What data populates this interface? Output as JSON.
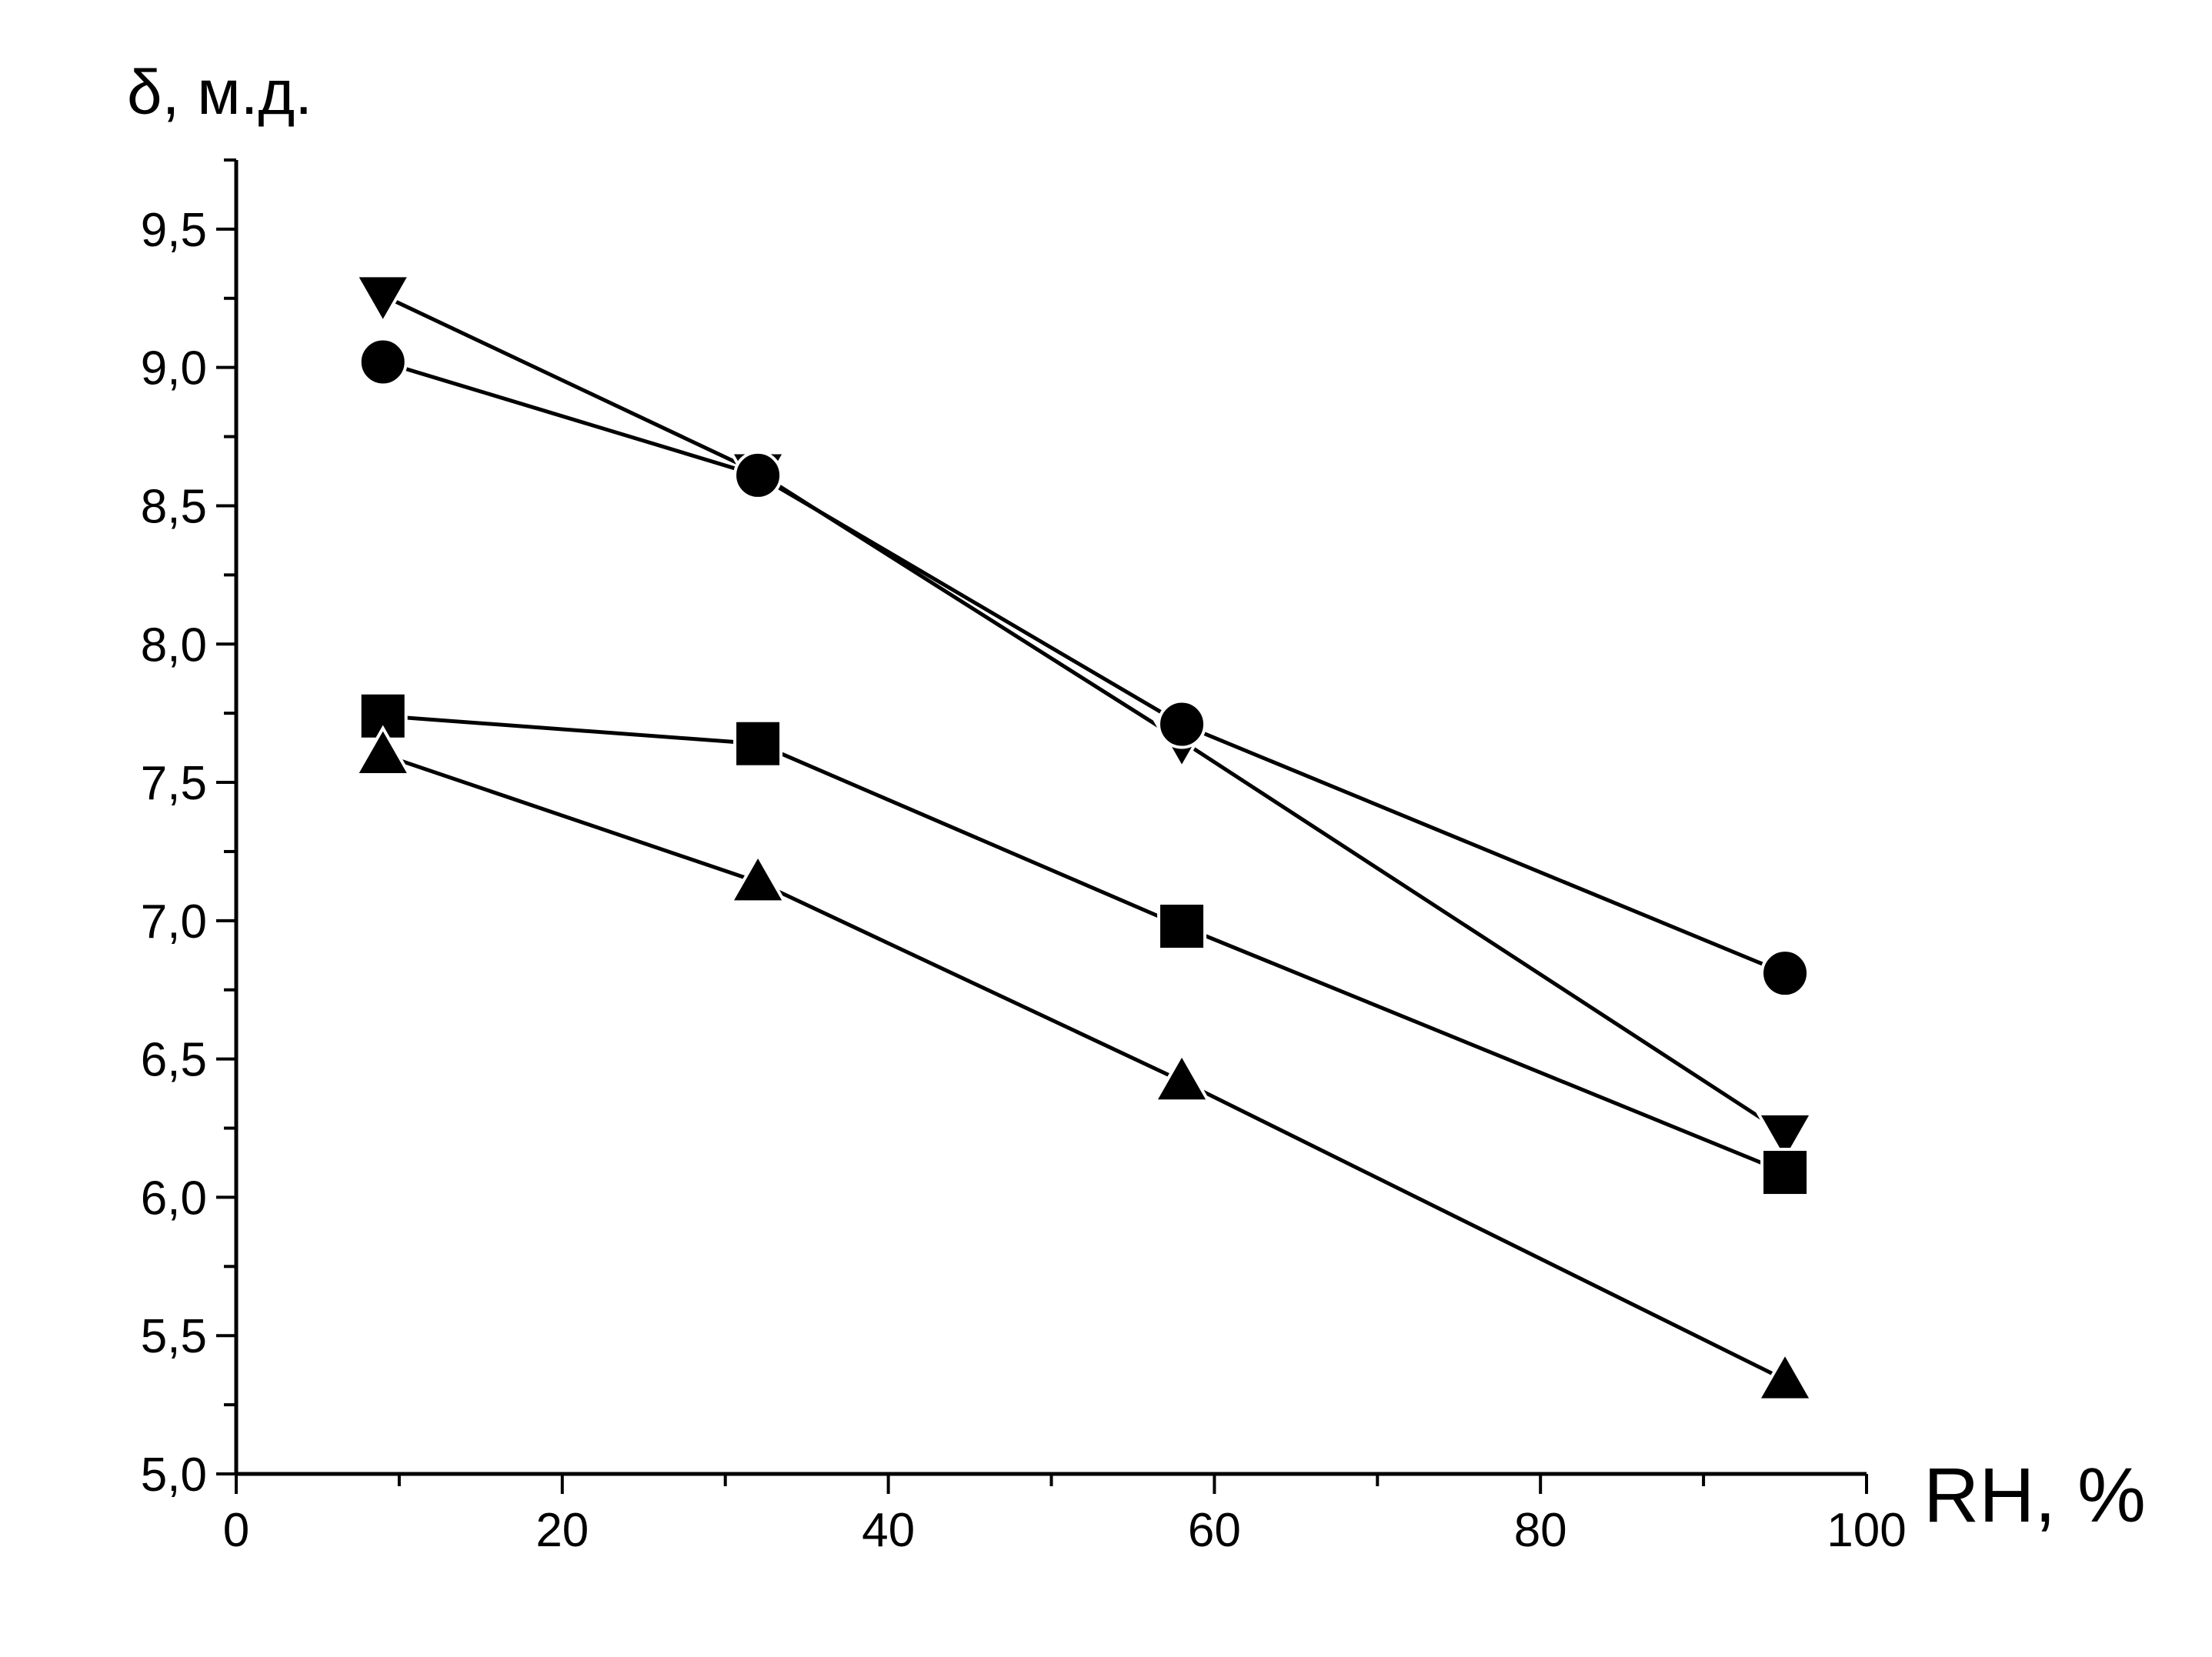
{
  "chart_data": {
    "type": "line",
    "title": "",
    "xlabel": "RH, %",
    "ylabel": "δ, м.д.",
    "xlim": [
      0,
      100
    ],
    "ylim": [
      5.0,
      9.75
    ],
    "xticks": [
      0,
      20,
      40,
      60,
      80,
      100
    ],
    "xtick_labels": [
      "0",
      "20",
      "40",
      "60",
      "80",
      "100"
    ],
    "yticks": [
      5.0,
      5.5,
      6.0,
      6.5,
      7.0,
      7.5,
      8.0,
      8.5,
      9.0,
      9.5
    ],
    "ytick_labels": [
      "5,0",
      "5,5",
      "6,0",
      "6,5",
      "7,0",
      "7,5",
      "8,0",
      "8,5",
      "9,0",
      "9,5"
    ],
    "grid": false,
    "legend": "none",
    "series": [
      {
        "marker": "triangle-down",
        "x": [
          9,
          32,
          58,
          95
        ],
        "y": [
          9.26,
          8.62,
          7.65,
          6.23
        ]
      },
      {
        "marker": "circle",
        "x": [
          9,
          32,
          58,
          95
        ],
        "y": [
          9.02,
          8.61,
          7.71,
          6.81
        ]
      },
      {
        "marker": "square",
        "x": [
          9,
          32,
          58,
          95
        ],
        "y": [
          7.74,
          7.64,
          6.98,
          6.09
        ]
      },
      {
        "marker": "triangle-up",
        "x": [
          9,
          32,
          58,
          95
        ],
        "y": [
          7.6,
          7.14,
          6.42,
          5.34
        ]
      }
    ],
    "colors": {
      "line": "#000000",
      "marker": "#000000",
      "background": "#ffffff"
    }
  }
}
